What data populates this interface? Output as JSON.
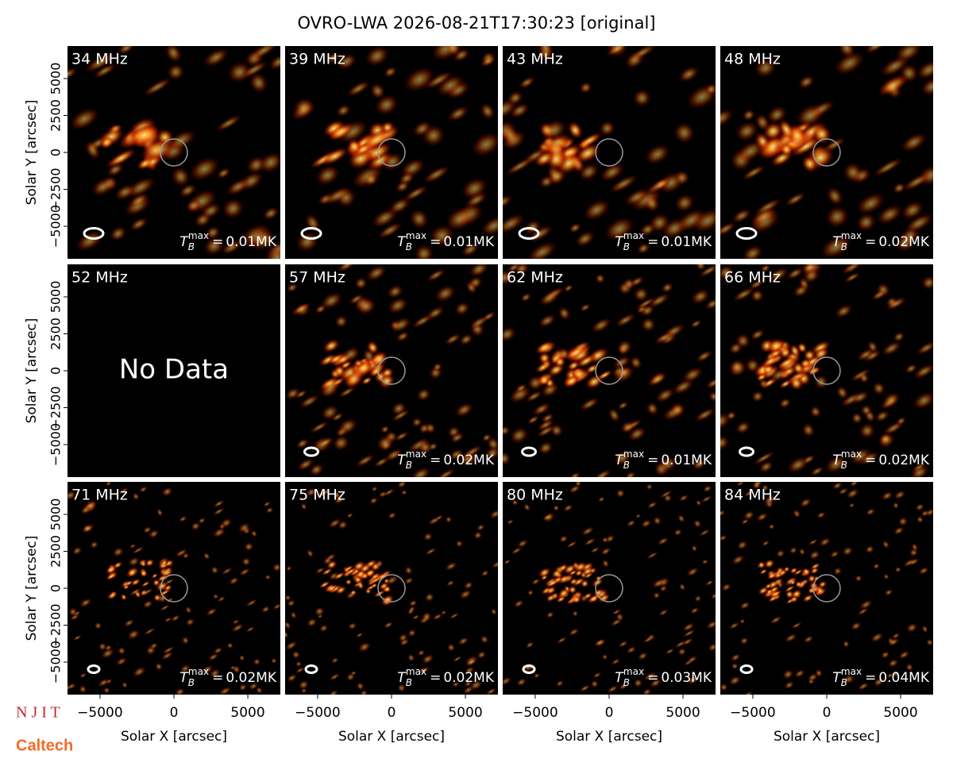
{
  "title": "OVRO-LWA 2026-08-21T17:30:23 [original]",
  "x_label": "Solar X [arcsec]",
  "y_label": "Solar Y [arcsec]",
  "xlim": [
    -7200,
    7200
  ],
  "ylim": [
    -7200,
    7200
  ],
  "xticks": [
    {
      "value": -5000,
      "label": "−5000"
    },
    0,
    5000
  ],
  "yticks": [
    {
      "value": -5000,
      "label": "−5000"
    },
    {
      "value": -2500,
      "label": "−2500"
    },
    0,
    2500,
    5000
  ],
  "tb_symbol": "T",
  "tb_sub": "B",
  "tb_sup": "max",
  "tb_equals": "=",
  "no_data": "No Data",
  "panels": [
    {
      "freq": "34 MHz",
      "tb_max": "0.01MK"
    },
    {
      "freq": "39 MHz",
      "tb_max": "0.01MK"
    },
    {
      "freq": "43 MHz",
      "tb_max": "0.01MK"
    },
    {
      "freq": "48 MHz",
      "tb_max": "0.02MK"
    },
    {
      "freq": "52 MHz",
      "tb_max": null
    },
    {
      "freq": "57 MHz",
      "tb_max": "0.02MK"
    },
    {
      "freq": "62 MHz",
      "tb_max": "0.01MK"
    },
    {
      "freq": "66 MHz",
      "tb_max": "0.02MK"
    },
    {
      "freq": "71 MHz",
      "tb_max": "0.02MK"
    },
    {
      "freq": "75 MHz",
      "tb_max": "0.02MK"
    },
    {
      "freq": "80 MHz",
      "tb_max": "0.03MK"
    },
    {
      "freq": "84 MHz",
      "tb_max": "0.04MK"
    }
  ],
  "logos": [
    "N J I T",
    "Caltech"
  ]
}
